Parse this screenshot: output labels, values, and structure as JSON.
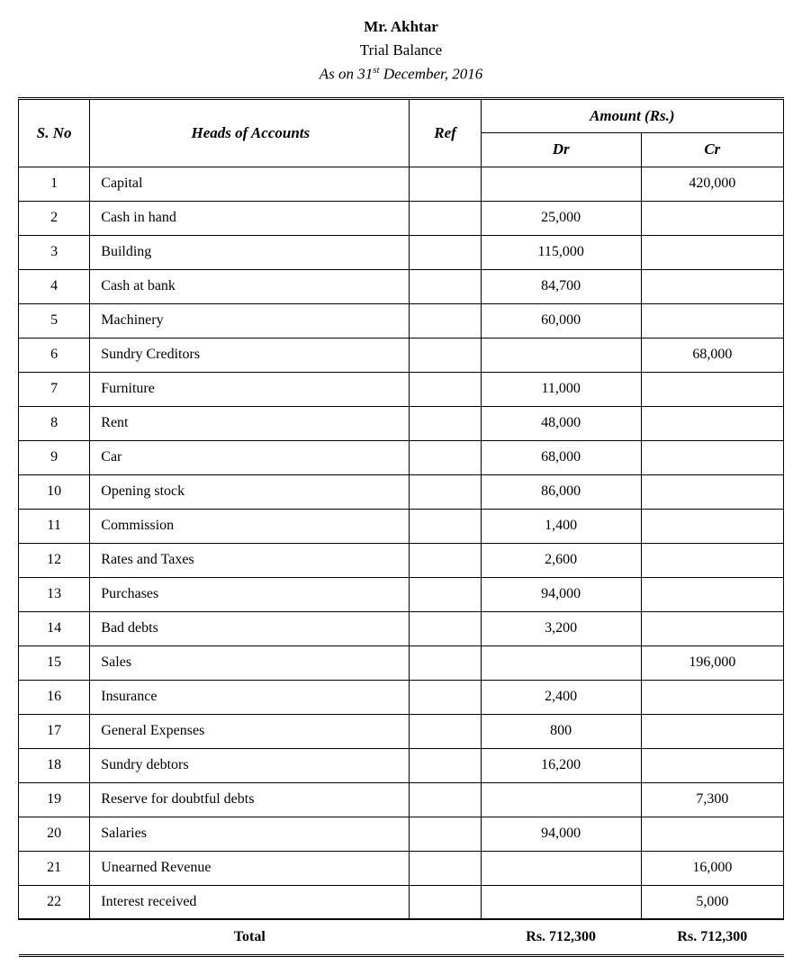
{
  "header": {
    "name": "Mr. Akhtar",
    "title": "Trial Balance",
    "date_prefix": "As on 31",
    "date_sup": "st",
    "date_suffix": " December, 2016"
  },
  "table": {
    "columns": {
      "sno": "S. No",
      "heads": "Heads of Accounts",
      "ref": "Ref",
      "amount": "Amount (Rs.)",
      "dr": "Dr",
      "cr": "Cr"
    },
    "rows": [
      {
        "sno": "1",
        "heads": "Capital",
        "ref": "",
        "dr": "",
        "cr": "420,000"
      },
      {
        "sno": "2",
        "heads": "Cash in hand",
        "ref": "",
        "dr": "25,000",
        "cr": ""
      },
      {
        "sno": "3",
        "heads": "Building",
        "ref": "",
        "dr": "115,000",
        "cr": ""
      },
      {
        "sno": "4",
        "heads": "Cash at bank",
        "ref": "",
        "dr": "84,700",
        "cr": ""
      },
      {
        "sno": "5",
        "heads": "Machinery",
        "ref": "",
        "dr": "60,000",
        "cr": ""
      },
      {
        "sno": "6",
        "heads": "Sundry Creditors",
        "ref": "",
        "dr": "",
        "cr": "68,000"
      },
      {
        "sno": "7",
        "heads": "Furniture",
        "ref": "",
        "dr": "11,000",
        "cr": ""
      },
      {
        "sno": "8",
        "heads": "Rent",
        "ref": "",
        "dr": "48,000",
        "cr": ""
      },
      {
        "sno": "9",
        "heads": "Car",
        "ref": "",
        "dr": "68,000",
        "cr": ""
      },
      {
        "sno": "10",
        "heads": "Opening stock",
        "ref": "",
        "dr": "86,000",
        "cr": ""
      },
      {
        "sno": "11",
        "heads": "Commission",
        "ref": "",
        "dr": "1,400",
        "cr": ""
      },
      {
        "sno": "12",
        "heads": "Rates and Taxes",
        "ref": "",
        "dr": "2,600",
        "cr": ""
      },
      {
        "sno": "13",
        "heads": "Purchases",
        "ref": "",
        "dr": "94,000",
        "cr": ""
      },
      {
        "sno": "14",
        "heads": "Bad debts",
        "ref": "",
        "dr": "3,200",
        "cr": ""
      },
      {
        "sno": "15",
        "heads": "Sales",
        "ref": "",
        "dr": "",
        "cr": "196,000"
      },
      {
        "sno": "16",
        "heads": "Insurance",
        "ref": "",
        "dr": "2,400",
        "cr": ""
      },
      {
        "sno": "17",
        "heads": "General Expenses",
        "ref": "",
        "dr": "800",
        "cr": ""
      },
      {
        "sno": "18",
        "heads": "Sundry debtors",
        "ref": "",
        "dr": "16,200",
        "cr": ""
      },
      {
        "sno": "19",
        "heads": "Reserve for doubtful debts",
        "ref": "",
        "dr": "",
        "cr": "7,300"
      },
      {
        "sno": "20",
        "heads": "Salaries",
        "ref": "",
        "dr": "94,000",
        "cr": ""
      },
      {
        "sno": "21",
        "heads": "Unearned Revenue",
        "ref": "",
        "dr": "",
        "cr": "16,000"
      },
      {
        "sno": "22",
        "heads": "Interest received",
        "ref": "",
        "dr": "",
        "cr": "5,000"
      }
    ],
    "footer": {
      "label": "Total",
      "dr": "Rs. 712,300",
      "cr": "Rs. 712,300"
    }
  },
  "styling": {
    "font_family": "Times New Roman",
    "background_color": "#ffffff",
    "text_color": "#000000",
    "border_color": "#000000",
    "header_fontsize": 17,
    "body_fontsize": 16,
    "col_widths": {
      "sno": 80,
      "heads": 360,
      "ref": 80,
      "dr": 180,
      "cr": 160
    }
  }
}
